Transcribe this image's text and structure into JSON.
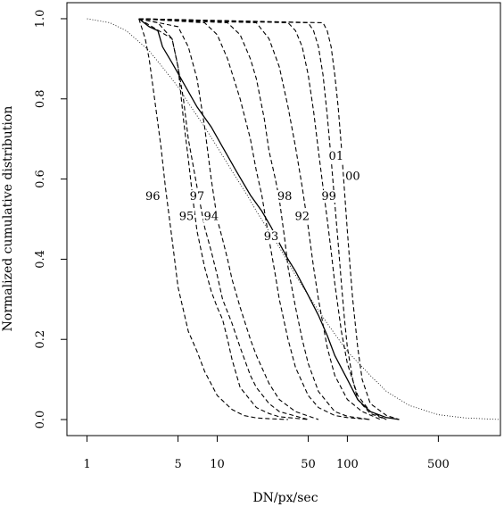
{
  "chart_data": {
    "type": "line",
    "title": "",
    "xlabel": "DN/px/sec",
    "ylabel": "Normalized cumulative distribution",
    "xscale": "log",
    "xlim": [
      0.7,
      1500
    ],
    "ylim": [
      -0.04,
      1.04
    ],
    "x_ticks": [
      1,
      5,
      10,
      50,
      100,
      500
    ],
    "x_tick_labels": [
      "1",
      "5",
      "10",
      "50",
      "100",
      "500"
    ],
    "y_ticks": [
      0.0,
      0.2,
      0.4,
      0.6,
      0.8,
      1.0
    ],
    "y_tick_labels": [
      "0.0",
      "0.2",
      "0.4",
      "0.6",
      "0.8",
      "1.0"
    ],
    "grid": false,
    "legend": "none",
    "series": [
      {
        "name": "96",
        "style": "dashed",
        "label_at": [
          3.2,
          0.55
        ],
        "x": [
          2.5,
          2.8,
          3.0,
          3.3,
          3.7,
          4.0,
          4.5,
          5.0,
          6.0,
          7.0,
          8.0,
          10.0,
          13.0,
          16.0,
          20.0,
          25.0,
          35.0
        ],
        "y": [
          1.0,
          0.95,
          0.9,
          0.8,
          0.68,
          0.58,
          0.45,
          0.33,
          0.22,
          0.17,
          0.12,
          0.06,
          0.025,
          0.01,
          0.004,
          0.002,
          0.0
        ]
      },
      {
        "name": "95",
        "style": "dashed",
        "label_at": [
          5.8,
          0.5
        ],
        "x": [
          2.5,
          3.5,
          4.5,
          5.0,
          5.5,
          6.0,
          6.5,
          7.0,
          8.0,
          9.0,
          10.0,
          11.0,
          12.0,
          13.0,
          15.0,
          20.0,
          25.0,
          30.0,
          50.0
        ],
        "y": [
          1.0,
          0.99,
          0.95,
          0.88,
          0.75,
          0.65,
          0.55,
          0.47,
          0.38,
          0.32,
          0.28,
          0.25,
          0.2,
          0.15,
          0.08,
          0.03,
          0.015,
          0.007,
          0.0
        ]
      },
      {
        "name": "97",
        "style": "dashed",
        "label_at": [
          7.0,
          0.55
        ],
        "x": [
          2.5,
          4.5,
          5.0,
          5.5,
          6.0,
          7.0,
          8.0,
          9.0,
          10.0,
          11.0,
          13.0,
          15.0,
          18.0,
          20.0,
          25.0,
          30.0,
          50.0
        ],
        "y": [
          1.0,
          0.95,
          0.88,
          0.8,
          0.7,
          0.58,
          0.48,
          0.42,
          0.36,
          0.3,
          0.24,
          0.18,
          0.11,
          0.08,
          0.04,
          0.02,
          0.0
        ]
      },
      {
        "name": "94",
        "style": "dashed",
        "label_at": [
          9.0,
          0.5
        ],
        "x": [
          2.5,
          5.0,
          6.0,
          7.0,
          8.0,
          9.0,
          10.0,
          11.0,
          12.0,
          13.0,
          15.0,
          18.0,
          20.0,
          25.0,
          30.0,
          40.0,
          60.0
        ],
        "y": [
          1.0,
          0.98,
          0.93,
          0.85,
          0.73,
          0.6,
          0.5,
          0.45,
          0.4,
          0.35,
          0.28,
          0.2,
          0.16,
          0.09,
          0.05,
          0.02,
          0.0
        ]
      },
      {
        "name": "93",
        "style": "dashed",
        "label_at": [
          26.0,
          0.45
        ],
        "x": [
          2.5,
          8.0,
          10.0,
          12.0,
          15.0,
          18.0,
          20.0,
          22.0,
          25.0,
          28.0,
          30.0,
          35.0,
          40.0,
          50.0,
          60.0,
          80.0,
          100.0,
          150.0
        ],
        "y": [
          1.0,
          0.99,
          0.96,
          0.9,
          0.8,
          0.7,
          0.62,
          0.56,
          0.45,
          0.36,
          0.3,
          0.2,
          0.13,
          0.06,
          0.03,
          0.01,
          0.005,
          0.0
        ]
      },
      {
        "name": "98",
        "style": "dashed",
        "label_at": [
          33.0,
          0.55
        ],
        "x": [
          2.5,
          12.0,
          15.0,
          18.0,
          20.0,
          23.0,
          25.0,
          28.0,
          30.0,
          33.0,
          35.0,
          40.0,
          45.0,
          50.0,
          60.0,
          80.0,
          100.0,
          150.0
        ],
        "y": [
          1.0,
          0.99,
          0.96,
          0.9,
          0.85,
          0.75,
          0.67,
          0.6,
          0.55,
          0.45,
          0.38,
          0.28,
          0.2,
          0.14,
          0.07,
          0.02,
          0.008,
          0.0
        ]
      },
      {
        "name": "92",
        "style": "dashed",
        "label_at": [
          45.0,
          0.5
        ],
        "x": [
          2.5,
          20.0,
          25.0,
          30.0,
          35.0,
          40.0,
          45.0,
          50.0,
          55.0,
          60.0,
          70.0,
          80.0,
          100.0,
          130.0,
          180.0
        ],
        "y": [
          1.0,
          0.99,
          0.95,
          0.88,
          0.78,
          0.68,
          0.58,
          0.48,
          0.38,
          0.3,
          0.18,
          0.11,
          0.05,
          0.02,
          0.0
        ]
      },
      {
        "name": "99",
        "style": "dashed",
        "label_at": [
          72.0,
          0.55
        ],
        "x": [
          2.5,
          35.0,
          40.0,
          45.0,
          50.0,
          55.0,
          60.0,
          65.0,
          70.0,
          75.0,
          80.0,
          90.0,
          100.0,
          120.0,
          150.0,
          200.0
        ],
        "y": [
          1.0,
          0.99,
          0.97,
          0.93,
          0.86,
          0.77,
          0.67,
          0.58,
          0.5,
          0.42,
          0.34,
          0.22,
          0.14,
          0.06,
          0.02,
          0.0
        ]
      },
      {
        "name": "01",
        "style": "dashed",
        "label_at": [
          82.0,
          0.65
        ],
        "x": [
          2.5,
          50.0,
          55.0,
          60.0,
          65.0,
          70.0,
          75.0,
          80.0,
          85.0,
          90.0,
          95.0,
          100.0,
          110.0,
          120.0,
          150.0,
          200.0
        ],
        "y": [
          1.0,
          0.99,
          0.97,
          0.93,
          0.86,
          0.76,
          0.65,
          0.54,
          0.44,
          0.34,
          0.25,
          0.18,
          0.1,
          0.05,
          0.015,
          0.0
        ]
      },
      {
        "name": "00",
        "style": "dashed",
        "label_at": [
          110.0,
          0.6
        ],
        "x": [
          2.5,
          65.0,
          70.0,
          75.0,
          80.0,
          85.0,
          90.0,
          95.0,
          100.0,
          105.0,
          110.0,
          120.0,
          130.0,
          150.0,
          200.0,
          250.0
        ],
        "y": [
          1.0,
          0.99,
          0.97,
          0.93,
          0.86,
          0.78,
          0.68,
          0.57,
          0.47,
          0.38,
          0.3,
          0.18,
          0.1,
          0.04,
          0.01,
          0.0
        ]
      },
      {
        "name": "",
        "style": "solid",
        "x": [
          2.5,
          3.0,
          3.5,
          3.8,
          4.5,
          5.5,
          7.0,
          9.0,
          11.0,
          14.0,
          18.0,
          22.0,
          26.0,
          30.0,
          35.0,
          40.0,
          50.0,
          60.0,
          70.0,
          80.0,
          100.0,
          120.0,
          150.0,
          200.0,
          250.0
        ],
        "y": [
          1.0,
          0.98,
          0.97,
          0.93,
          0.89,
          0.84,
          0.78,
          0.73,
          0.68,
          0.62,
          0.56,
          0.52,
          0.48,
          0.44,
          0.4,
          0.37,
          0.31,
          0.26,
          0.21,
          0.16,
          0.1,
          0.05,
          0.02,
          0.005,
          0.0
        ]
      },
      {
        "name": "",
        "style": "dotted",
        "x": [
          1.0,
          1.5,
          2.0,
          3.0,
          4.0,
          5.0,
          6.0,
          8.0,
          10.0,
          13.0,
          17.0,
          20.0,
          25.0,
          30.0,
          40.0,
          50.0,
          70.0,
          100.0,
          150.0,
          200.0,
          300.0,
          500.0,
          800.0,
          1500.0
        ],
        "y": [
          1.0,
          0.99,
          0.97,
          0.92,
          0.87,
          0.83,
          0.79,
          0.73,
          0.68,
          0.62,
          0.56,
          0.52,
          0.47,
          0.43,
          0.36,
          0.31,
          0.24,
          0.17,
          0.11,
          0.07,
          0.035,
          0.012,
          0.004,
          0.0
        ]
      }
    ]
  }
}
